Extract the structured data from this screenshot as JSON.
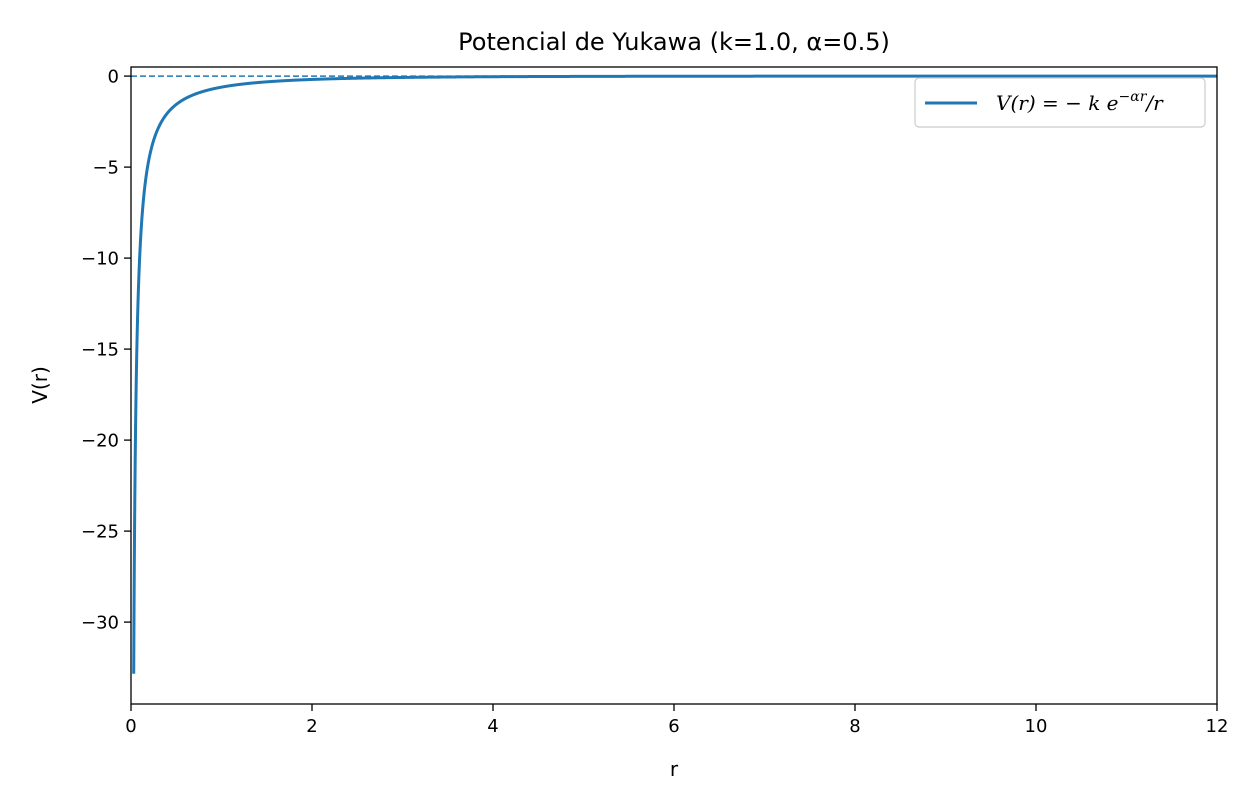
{
  "chart_data": {
    "type": "line",
    "title": "Potencial de Yukawa (k=1.0, α=0.5)",
    "xlabel": "r",
    "ylabel": "V(r)",
    "xlim": [
      0,
      12
    ],
    "ylim": [
      -34.5,
      0.5
    ],
    "x_ticks": [
      0,
      2,
      4,
      6,
      8,
      10,
      12
    ],
    "x_tick_labels": [
      "0",
      "2",
      "4",
      "6",
      "8",
      "10",
      "12"
    ],
    "y_ticks": [
      0,
      -5,
      -10,
      -15,
      -20,
      -25,
      -30
    ],
    "y_tick_labels": [
      "0",
      "−5",
      "−10",
      "−15",
      "−20",
      "−25",
      "−30"
    ],
    "parameters": {
      "k": 1.0,
      "alpha": 0.5
    },
    "series": [
      {
        "name": "V(r) = − k e^{−αr}/r",
        "function": "-k*exp(-alpha*r)/r",
        "r_range": [
          0.03,
          12
        ],
        "color": "#1f77b4",
        "style": "solid"
      }
    ],
    "reference_line": {
      "y": 0,
      "style": "dashed",
      "color": "#1f77b4"
    },
    "legend": {
      "position": "top-right",
      "parts": {
        "lhs": "V",
        "arg": "(r) = − k e",
        "exp": "−αr",
        "tail": "/r"
      }
    },
    "grid": false
  }
}
